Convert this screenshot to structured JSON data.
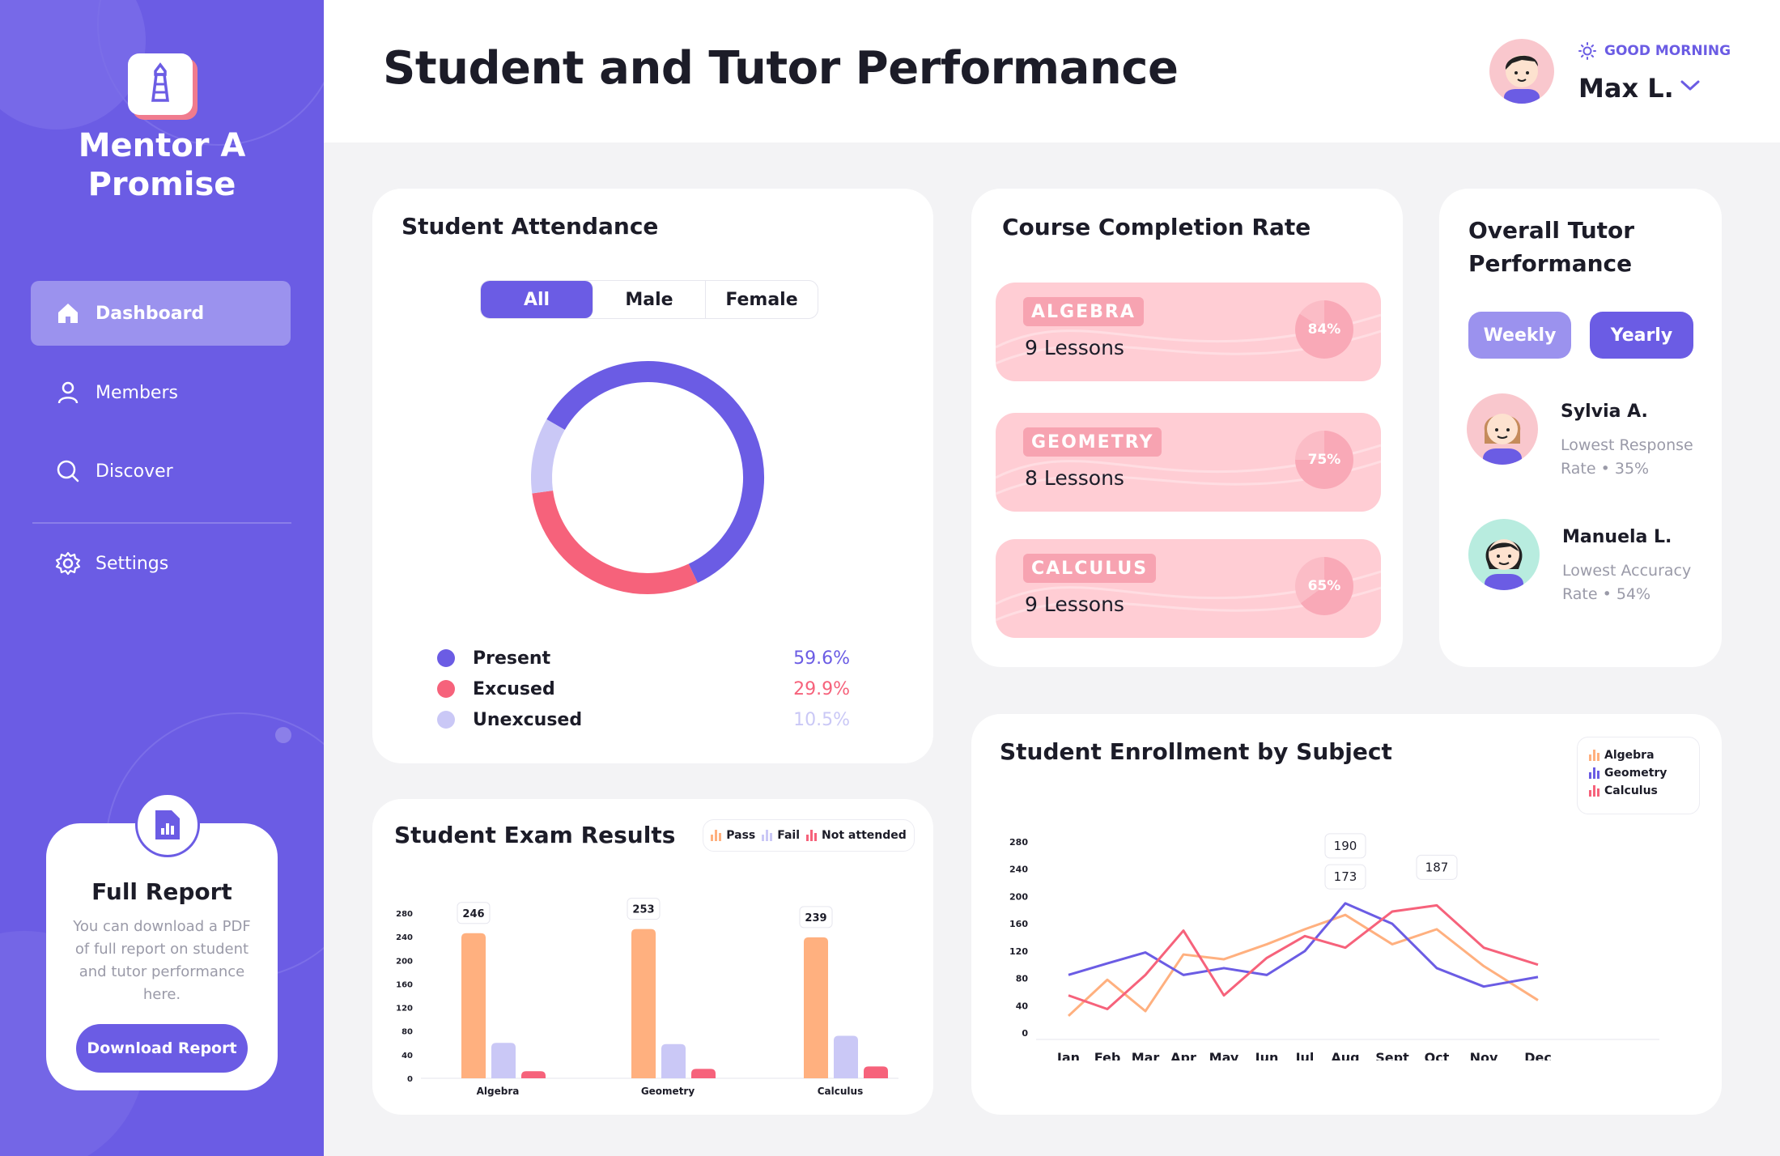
{
  "app": {
    "name_line1": "Mentor A",
    "name_line2": "Promise"
  },
  "nav": [
    {
      "label": "Dashboard",
      "icon": "home-icon",
      "active": true
    },
    {
      "label": "Members",
      "icon": "user-icon"
    },
    {
      "label": "Discover",
      "icon": "search-icon"
    },
    {
      "label": "Settings",
      "icon": "gear-icon"
    }
  ],
  "report": {
    "title": "Full Report",
    "description": "You can download a PDF of full report on student and tutor performance here.",
    "button": "Download Report"
  },
  "header": {
    "title": "Student and Tutor Performance",
    "greeting": "GOOD MORNING",
    "user": "Max L."
  },
  "attendance": {
    "title": "Student Attendance",
    "filters": [
      "All",
      "Male",
      "Female"
    ],
    "selected_filter": "All",
    "legend": [
      {
        "label": "Present",
        "value": "59.6%",
        "color": "#6b5ce4"
      },
      {
        "label": "Excused",
        "value": "29.9%",
        "color": "#f6627b"
      },
      {
        "label": "Unexcused",
        "value": "10.5%",
        "color": "#cac8f6"
      }
    ]
  },
  "courses": {
    "title": "Course Completion Rate",
    "items": [
      {
        "subject": "ALGEBRA",
        "lessons": "9 Lessons",
        "percent": "84%",
        "value": 84
      },
      {
        "subject": "GEOMETRY",
        "lessons": "8 Lessons",
        "percent": "75%",
        "value": 75
      },
      {
        "subject": "CALCULUS",
        "lessons": "9 Lessons",
        "percent": "65%",
        "value": 65
      }
    ]
  },
  "tutors": {
    "title_line1": "Overall Tutor",
    "title_line2": "Performance",
    "tabs": [
      "Weekly",
      "Yearly"
    ],
    "selected_tab": "Yearly",
    "items": [
      {
        "name": "Sylvia A.",
        "note_line1": "Lowest Response",
        "note_line2": "Rate • 35%"
      },
      {
        "name": "Manuela L.",
        "note_line1": "Lowest Accuracy",
        "note_line2": "Rate • 54%"
      }
    ]
  },
  "exam": {
    "title": "Student Exam Results",
    "legend": [
      "Pass",
      "Fail",
      "Not attended"
    ]
  },
  "enrollment": {
    "title": "Student Enrollment by Subject",
    "legend": [
      "Algebra",
      "Geometry",
      "Calculus"
    ]
  },
  "chart_data": [
    {
      "type": "pie",
      "title": "Student Attendance",
      "categories": [
        "Present",
        "Excused",
        "Unexcused"
      ],
      "values": [
        59.6,
        29.9,
        10.5
      ],
      "colors": [
        "#6b5ce4",
        "#f6627b",
        "#cac8f6"
      ],
      "donut": true
    },
    {
      "type": "bar",
      "title": "Student Exam Results",
      "categories": [
        "Algebra",
        "Geometry",
        "Calculus"
      ],
      "series": [
        {
          "name": "Pass",
          "values": [
            246,
            253,
            239
          ],
          "color": "#ffb07f"
        },
        {
          "name": "Fail",
          "values": [
            60,
            58,
            72
          ],
          "color": "#cac8f6"
        },
        {
          "name": "Not attended",
          "values": [
            12,
            16,
            20
          ],
          "color": "#f6627b"
        }
      ],
      "data_labels": [
        "246",
        "253",
        "239"
      ],
      "yticks": [
        "0",
        "40",
        "80",
        "120",
        "160",
        "200",
        "240",
        "280"
      ],
      "ylim": [
        0,
        280
      ],
      "legend_position": "top-right"
    },
    {
      "type": "line",
      "title": "Student Enrollment by Subject",
      "categories": [
        "Jan",
        "Feb",
        "Mar",
        "Apr",
        "May",
        "Jun",
        "Jul",
        "Aug",
        "Sept",
        "Oct",
        "Nov",
        "Dec"
      ],
      "series": [
        {
          "name": "Algebra",
          "values": [
            25,
            78,
            32,
            115,
            108,
            130,
            152,
            173,
            130,
            152,
            98,
            48
          ],
          "color": "#ffb07f"
        },
        {
          "name": "Geometry",
          "values": [
            85,
            102,
            118,
            85,
            95,
            85,
            120,
            190,
            160,
            95,
            68,
            82
          ],
          "color": "#6b5ce4"
        },
        {
          "name": "Calculus",
          "values": [
            55,
            35,
            85,
            150,
            55,
            110,
            142,
            125,
            178,
            187,
            125,
            100
          ],
          "color": "#f6627b"
        }
      ],
      "annotations": [
        "190",
        "173",
        "187"
      ],
      "yticks": [
        "0",
        "40",
        "80",
        "120",
        "160",
        "200",
        "240",
        "280"
      ],
      "ylim": [
        0,
        280
      ],
      "legend_position": "top-right"
    }
  ]
}
